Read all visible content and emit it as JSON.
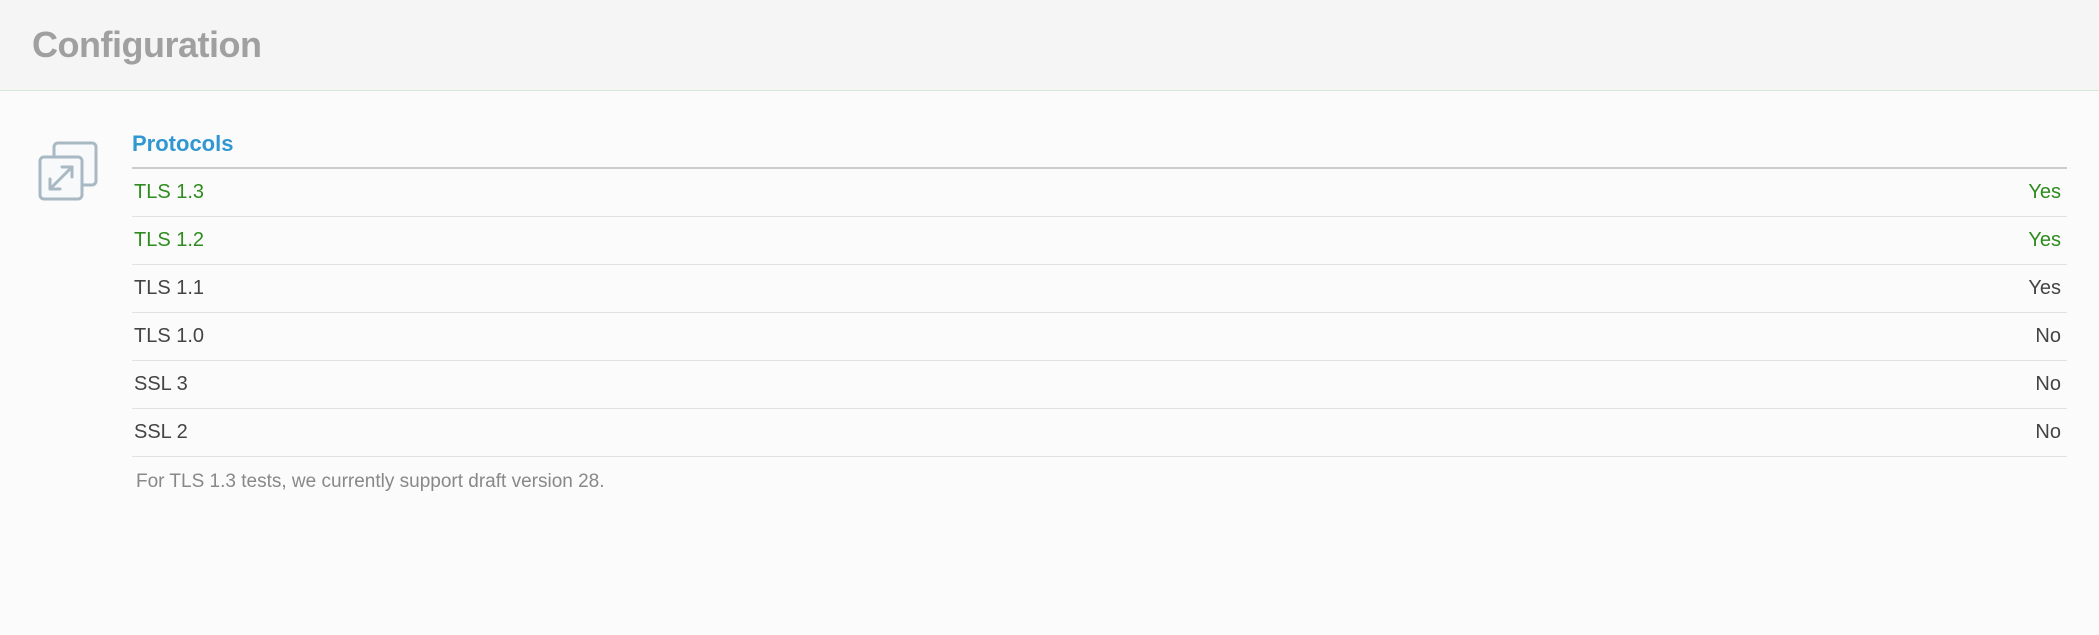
{
  "header": {
    "title": "Configuration"
  },
  "protocols": {
    "heading": "Protocols",
    "rows": [
      {
        "name": "TLS 1.3",
        "value": "Yes",
        "highlight": true
      },
      {
        "name": "TLS 1.2",
        "value": "Yes",
        "highlight": true
      },
      {
        "name": "TLS 1.1",
        "value": "Yes",
        "highlight": false
      },
      {
        "name": "TLS 1.0",
        "value": "No",
        "highlight": false
      },
      {
        "name": "SSL 3",
        "value": "No",
        "highlight": false
      },
      {
        "name": "SSL 2",
        "value": "No",
        "highlight": false
      }
    ],
    "footnote": "For TLS 1.3 tests, we currently support draft version 28."
  },
  "colors": {
    "title_gray": "#a0a0a0",
    "heading_blue": "#3097d1",
    "text_default": "#444444",
    "highlight_green": "#2e8b1f",
    "footnote_gray": "#888888",
    "header_bg": "#f5f5f5",
    "body_bg": "#fbfbfb",
    "divider": "#cccccc",
    "row_border": "#e2e2e2",
    "icon_stroke": "#a8b9c4"
  },
  "typography": {
    "title_fontsize": 36,
    "heading_fontsize": 22,
    "row_fontsize": 20,
    "footnote_fontsize": 19
  },
  "icons": {
    "expand": "expand-icon"
  }
}
